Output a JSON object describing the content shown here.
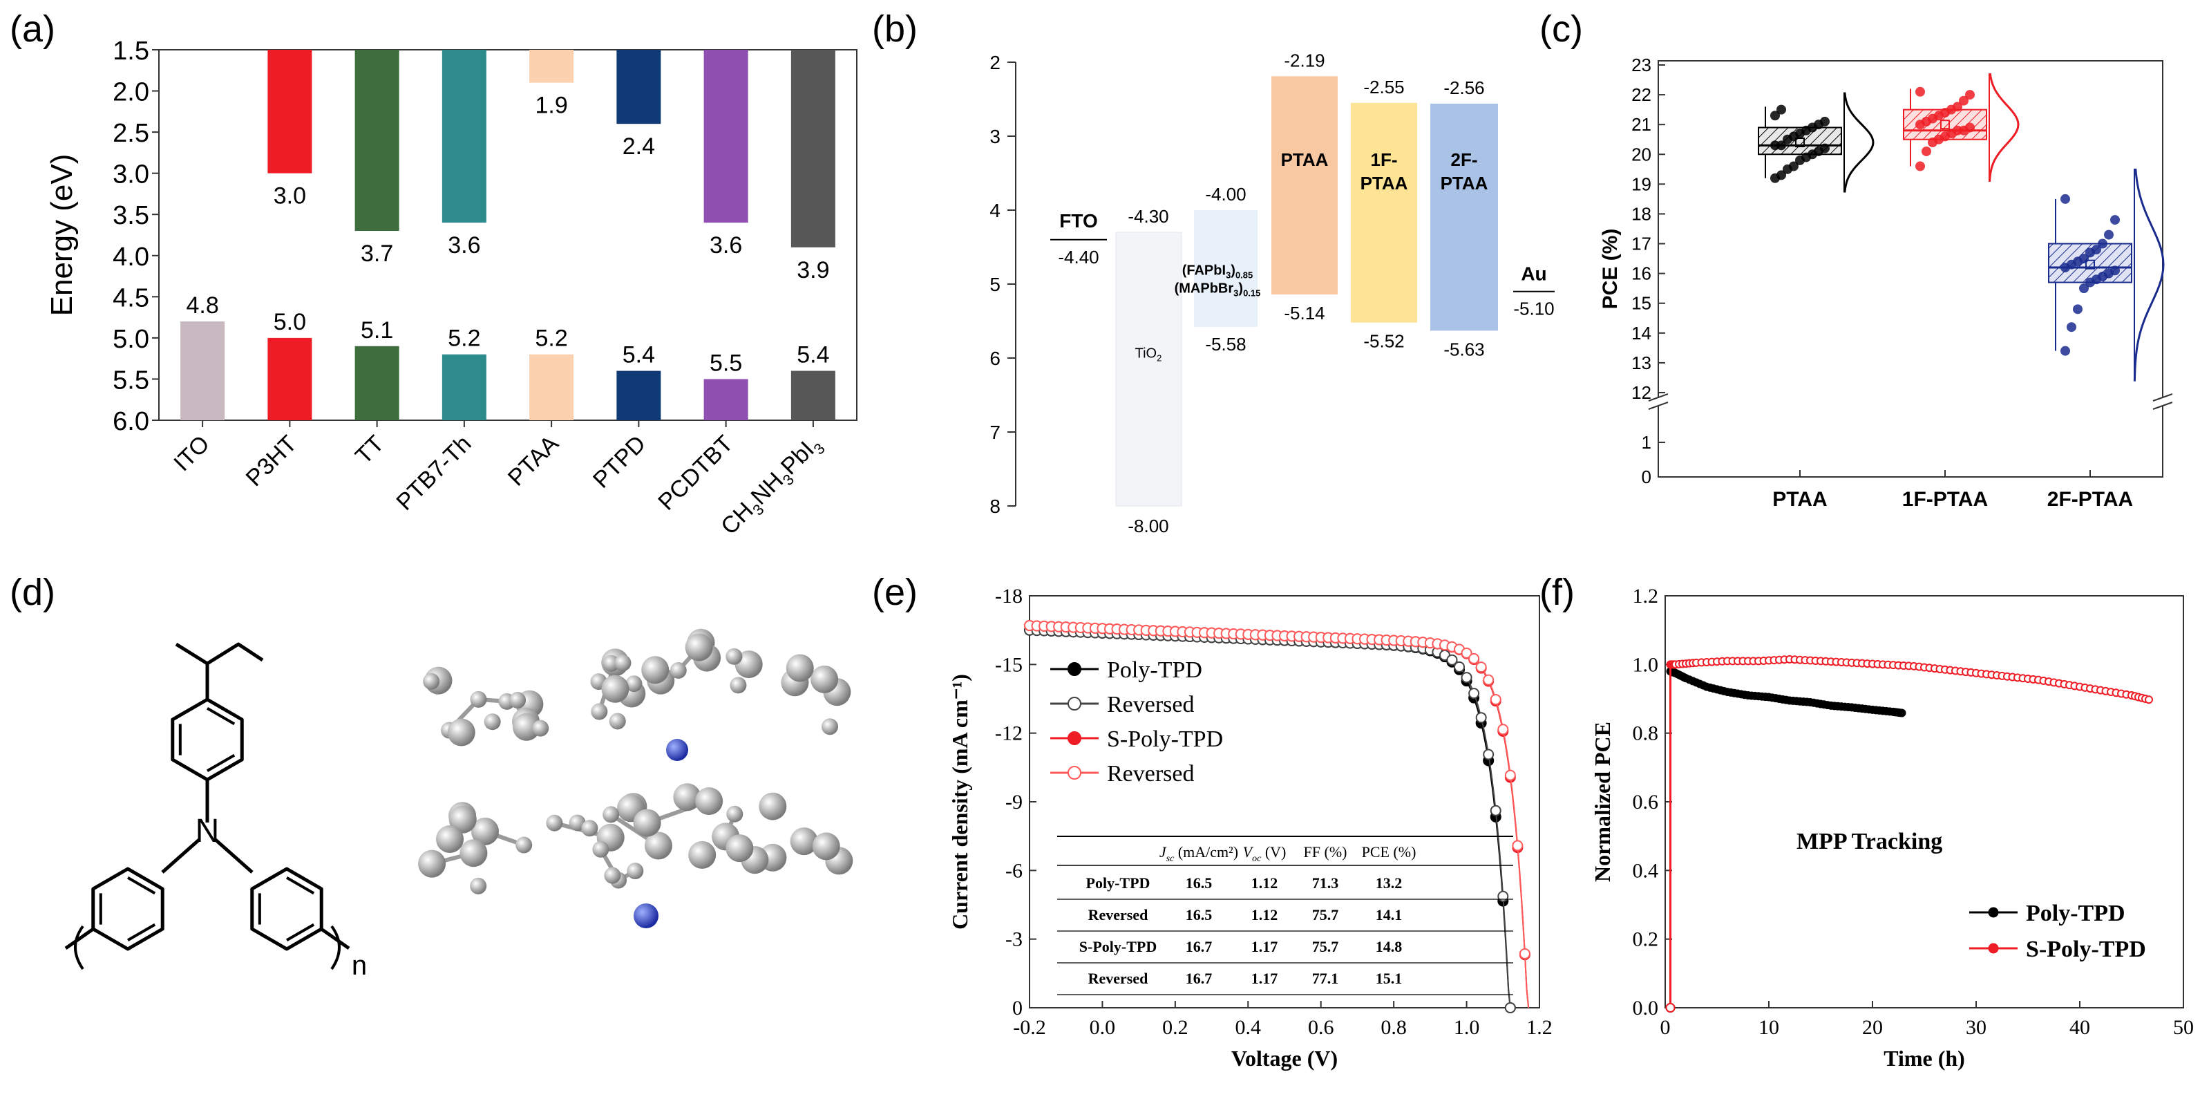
{
  "panel_labels": [
    "(a)",
    "(b)",
    "(c)",
    "(d)",
    "(e)",
    "(f)"
  ],
  "chart_data": [
    {
      "panel": "a",
      "type": "bar",
      "ylabel": "Energy (eV)",
      "ylim": [
        1.5,
        6.0
      ],
      "y_inverted": true,
      "y_ticks": [
        "1.5",
        "2.0",
        "2.5",
        "3.0",
        "3.5",
        "4.0",
        "4.5",
        "5.0",
        "5.5",
        "6.0"
      ],
      "categories": [
        "ITO",
        "P3HT",
        "TT",
        "PTB7-Th",
        "PTAA",
        "PTPD",
        "PCDTBT",
        "CH3NH3PbI3"
      ],
      "category_labels": [
        [
          {
            "t": "ITO"
          }
        ],
        [
          {
            "t": "P3HT"
          }
        ],
        [
          {
            "t": "TT"
          }
        ],
        [
          {
            "t": "PTB7-Th"
          }
        ],
        [
          {
            "t": "PTAA"
          }
        ],
        [
          {
            "t": "PTPD"
          }
        ],
        [
          {
            "t": "PCDTBT"
          }
        ],
        [
          {
            "t": "CH"
          },
          {
            "t": "3",
            "sub": true
          },
          {
            "t": "NH"
          },
          {
            "t": "3",
            "sub": true
          },
          {
            "t": "PbI"
          },
          {
            "t": "3",
            "sub": true
          }
        ]
      ],
      "colors": [
        "#c8b8c0",
        "#ee1c24",
        "#3e6e3e",
        "#2e8b8b",
        "#fcd1b0",
        "#0f3a75",
        "#8e4fb0",
        "#575757"
      ],
      "lumo": [
        null,
        3.0,
        3.7,
        3.6,
        1.9,
        2.4,
        3.6,
        3.9
      ],
      "lumo_labels": [
        "",
        "3.0",
        "3.7",
        "3.6",
        "1.9",
        "2.4",
        "3.6",
        "3.9"
      ],
      "homo": [
        4.8,
        5.0,
        5.1,
        5.2,
        5.2,
        5.4,
        5.5,
        5.4
      ],
      "homo_labels": [
        "4.8",
        "5.0",
        "5.1",
        "5.2",
        "5.2",
        "5.4",
        "5.5",
        "5.4"
      ]
    },
    {
      "panel": "b",
      "type": "energy_level_diagram",
      "ylim": [
        2,
        8
      ],
      "y_ticks": [
        "2",
        "3",
        "4",
        "5",
        "6",
        "7",
        "8"
      ],
      "levels": [
        {
          "name": "FTO",
          "line_at": 4.4,
          "label": "-4.40",
          "color": "#000000"
        },
        {
          "name": "TiO2",
          "name_parts": [
            {
              "t": "TiO"
            },
            {
              "t": "2",
              "sub": true
            }
          ],
          "top": 4.3,
          "bottom": 8.0,
          "top_label": "-4.30",
          "bottom_label": "-8.00",
          "color": "#f2f4f8"
        },
        {
          "name": "(FAPbI3)0.85(MAPbBr3)0.15",
          "name_line1": [
            {
              "t": "(FAPbI"
            },
            {
              "t": "3",
              "sub": true
            },
            {
              "t": ")"
            },
            {
              "t": "0.85",
              "sub": true
            }
          ],
          "name_line2": [
            {
              "t": "(MAPbBr"
            },
            {
              "t": "3",
              "sub": true
            },
            {
              "t": ")"
            },
            {
              "t": "0.15",
              "sub": true
            }
          ],
          "top": 4.0,
          "bottom": 5.58,
          "top_label": "-4.00",
          "bottom_label": "-5.58",
          "color": "#e8f1fa"
        },
        {
          "name": "PTAA",
          "top": 2.19,
          "bottom": 5.14,
          "top_label": "-2.19",
          "bottom_label": "-5.14",
          "color": "#f8c8a2"
        },
        {
          "name": "1F-PTAA",
          "name_line1": "1F-",
          "name_line2": "PTAA",
          "top": 2.55,
          "bottom": 5.52,
          "top_label": "-2.55",
          "bottom_label": "-5.52",
          "color": "#fde394"
        },
        {
          "name": "2F-PTAA",
          "name_line1": "2F-",
          "name_line2": "PTAA",
          "top": 2.56,
          "bottom": 5.63,
          "top_label": "-2.56",
          "bottom_label": "-5.63",
          "color": "#a9c2e6"
        },
        {
          "name": "Au",
          "line_at": 5.1,
          "label": "-5.10",
          "color": "#000000"
        }
      ]
    },
    {
      "panel": "c",
      "type": "box",
      "ylabel": "PCE (%)",
      "ylim": [
        0,
        23
      ],
      "axis_break": [
        1.8,
        12
      ],
      "y_ticks_upper": [
        "12",
        "13",
        "14",
        "15",
        "16",
        "17",
        "18",
        "19",
        "20",
        "21",
        "22",
        "23"
      ],
      "y_ticks_lower": [
        "0",
        "1"
      ],
      "categories": [
        "PTAA",
        "1F-PTAA",
        "2F-PTAA"
      ],
      "colors": [
        "#000000",
        "#ee1c24",
        "#1a2b8e"
      ],
      "series": [
        {
          "name": "PTAA",
          "q1": 20.0,
          "median": 20.3,
          "q3": 20.9,
          "mean": 20.4,
          "whisker": [
            19.2,
            21.6
          ],
          "points": [
            19.2,
            19.3,
            19.5,
            19.6,
            19.8,
            19.9,
            20.0,
            20.1,
            20.2,
            20.3,
            20.3,
            20.5,
            20.6,
            20.7,
            20.8,
            20.9,
            21.0,
            21.1,
            21.3,
            21.5
          ]
        },
        {
          "name": "1F-PTAA",
          "q1": 20.5,
          "median": 20.8,
          "q3": 21.5,
          "mean": 21.0,
          "whisker": [
            19.6,
            22.2
          ],
          "points": [
            19.6,
            20.1,
            20.4,
            20.5,
            20.6,
            20.7,
            20.8,
            20.8,
            20.9,
            21.0,
            21.1,
            21.2,
            21.3,
            21.4,
            21.5,
            21.6,
            21.8,
            22.0,
            22.1
          ]
        },
        {
          "name": "2F-PTAA",
          "q1": 15.7,
          "median": 16.2,
          "q3": 17.0,
          "mean": 16.3,
          "whisker": [
            13.4,
            18.5
          ],
          "points": [
            13.4,
            14.2,
            14.8,
            15.5,
            15.7,
            15.8,
            15.9,
            16.0,
            16.1,
            16.2,
            16.3,
            16.4,
            16.5,
            16.7,
            16.8,
            17.0,
            17.3,
            17.8,
            18.5
          ]
        }
      ]
    },
    {
      "panel": "e",
      "type": "line",
      "xlabel": "Voltage (V)",
      "ylabel": "Current density (mA cm⁻¹)",
      "xlim": [
        -0.2,
        1.2
      ],
      "ylim": [
        0,
        -18
      ],
      "x_ticks": [
        "-0.2",
        "0.0",
        "0.2",
        "0.4",
        "0.6",
        "0.8",
        "1.0",
        "1.2"
      ],
      "y_ticks": [
        "0",
        "-3",
        "-6",
        "-9",
        "-12",
        "-15",
        "-18"
      ],
      "series": [
        {
          "name": "Poly-TPD",
          "color": "#000000",
          "marker": "filled",
          "jsc": 16.5,
          "voc": 1.12,
          "ff": 71.3,
          "pce": 13.2
        },
        {
          "name": "Reversed",
          "color": "#444444",
          "marker": "open",
          "jsc": 16.5,
          "voc": 1.12,
          "ff": 75.7,
          "pce": 14.1
        },
        {
          "name": "S-Poly-TPD",
          "color": "#ee1c24",
          "marker": "filled",
          "jsc": 16.7,
          "voc": 1.17,
          "ff": 75.7,
          "pce": 14.8
        },
        {
          "name": "Reversed",
          "color": "#ff5a5a",
          "marker": "open",
          "jsc": 16.7,
          "voc": 1.17,
          "ff": 77.1,
          "pce": 15.1
        }
      ],
      "table": {
        "headers": [
          [
            {
              "t": "J",
              "i": true
            },
            {
              "t": "sc",
              "sub": true,
              "i": true
            },
            {
              "t": " (mA/cm²)"
            }
          ],
          [
            {
              "t": "V",
              "i": true
            },
            {
              "t": "oc",
              "sub": true,
              "i": true
            },
            {
              "t": " (V)"
            }
          ],
          [
            {
              "t": "FF (%)"
            }
          ],
          [
            {
              "t": "PCE (%)"
            }
          ]
        ],
        "rows": [
          [
            "Poly-TPD",
            "16.5",
            "1.12",
            "71.3",
            "13.2"
          ],
          [
            "Reversed",
            "16.5",
            "1.12",
            "75.7",
            "14.1"
          ],
          [
            "S-Poly-TPD",
            "16.7",
            "1.17",
            "75.7",
            "14.8"
          ],
          [
            "Reversed",
            "16.7",
            "1.17",
            "77.1",
            "15.1"
          ]
        ]
      }
    },
    {
      "panel": "f",
      "type": "line",
      "xlabel": "Time (h)",
      "ylabel": "Normalized PCE",
      "xlim": [
        0,
        50
      ],
      "ylim": [
        0,
        1.2
      ],
      "x_ticks": [
        "0",
        "10",
        "20",
        "30",
        "40",
        "50"
      ],
      "y_ticks": [
        "0.0",
        "0.2",
        "0.4",
        "0.6",
        "0.8",
        "1.0",
        "1.2"
      ],
      "annotation": "MPP Tracking",
      "series": [
        {
          "name": "Poly-TPD",
          "color": "#000000",
          "x": [
            0.5,
            1,
            2,
            4,
            6,
            8,
            10,
            12,
            14,
            16,
            18,
            20,
            22,
            23
          ],
          "y": [
            0.98,
            0.975,
            0.96,
            0.935,
            0.92,
            0.91,
            0.905,
            0.895,
            0.89,
            0.88,
            0.875,
            0.868,
            0.862,
            0.858
          ]
        },
        {
          "name": "S-Poly-TPD",
          "color": "#ee1c24",
          "x": [
            0.5,
            1,
            3,
            6,
            9,
            12,
            15,
            18,
            21,
            24,
            27,
            30,
            33,
            36,
            39,
            42,
            45,
            47
          ],
          "y": [
            1.0,
            1.0,
            1.005,
            1.01,
            1.01,
            1.015,
            1.01,
            1.005,
            1.0,
            0.995,
            0.985,
            0.975,
            0.965,
            0.955,
            0.94,
            0.925,
            0.91,
            0.895
          ]
        }
      ]
    }
  ],
  "molecule": {
    "label": "n",
    "description_name": "PTAA-like repeat unit"
  }
}
